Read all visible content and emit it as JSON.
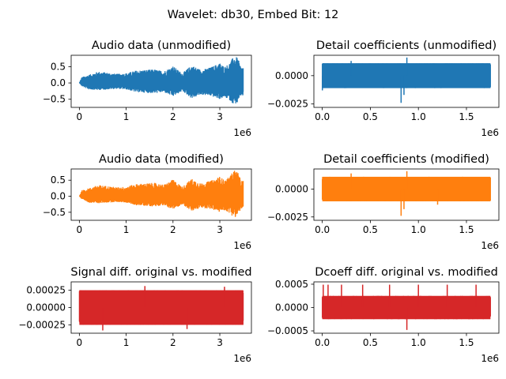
{
  "figure": {
    "suptitle": "Wavelet: db30, Embed Bit: 12",
    "background": "#ffffff"
  },
  "chart_data": [
    {
      "type": "line",
      "title": "Audio data (unmodified)",
      "color": "#1f77b4",
      "xlim": [
        -175000,
        3675000
      ],
      "ylim": [
        -0.75,
        0.85
      ],
      "xticks": [
        0,
        1000000,
        2000000,
        3000000
      ],
      "xtick_labels": [
        "0",
        "1",
        "2",
        "3"
      ],
      "yticks": [
        -0.5,
        0.0,
        0.5
      ],
      "ytick_labels": [
        "−0.5",
        "0.0",
        "0.5"
      ],
      "x_offset_label": "1e6",
      "x_range": [
        0,
        3500000
      ],
      "envelope": {
        "x": [
          0,
          50000,
          200000,
          400000,
          600000,
          800000,
          1000000,
          1200000,
          1400000,
          1600000,
          1800000,
          2000000,
          2200000,
          2400000,
          2600000,
          2800000,
          3000000,
          3100000,
          3200000,
          3300000,
          3380000,
          3450000
        ],
        "upper": [
          0.0,
          0.18,
          0.25,
          0.35,
          0.32,
          0.28,
          0.3,
          0.38,
          0.4,
          0.42,
          0.36,
          0.52,
          0.3,
          0.55,
          0.4,
          0.48,
          0.62,
          0.5,
          0.6,
          0.82,
          0.78,
          0.5
        ],
        "lower": [
          0.0,
          -0.1,
          -0.2,
          -0.22,
          -0.2,
          -0.18,
          -0.2,
          -0.28,
          -0.3,
          -0.32,
          -0.28,
          -0.42,
          -0.25,
          -0.48,
          -0.36,
          -0.4,
          -0.5,
          -0.44,
          -0.52,
          -0.66,
          -0.62,
          -0.4
        ]
      }
    },
    {
      "type": "line",
      "title": "Detail coefficients (unmodified)",
      "color": "#1f77b4",
      "xlim": [
        -87500,
        1837500
      ],
      "ylim": [
        -0.0028,
        0.0018
      ],
      "xticks": [
        0,
        500000,
        1000000,
        1500000
      ],
      "xtick_labels": [
        "0.0",
        "0.5",
        "1.0",
        "1.5"
      ],
      "yticks": [
        -0.0025,
        0.0
      ],
      "ytick_labels": [
        "−0.0025",
        "0.0000"
      ],
      "x_offset_label": "1e6",
      "x_range": [
        0,
        1750000
      ],
      "band": [
        -0.0011,
        0.0011
      ],
      "spikes": [
        {
          "x": 1000,
          "y": -0.0013
        },
        {
          "x": 820000,
          "y": -0.0024
        },
        {
          "x": 880000,
          "y": 0.0016
        },
        {
          "x": 850000,
          "y": -0.0017
        },
        {
          "x": 300000,
          "y": 0.0013
        }
      ]
    },
    {
      "type": "line",
      "title": "Audio data (modified)",
      "color": "#ff7f0e",
      "xlim": [
        -175000,
        3675000
      ],
      "ylim": [
        -0.75,
        0.85
      ],
      "xticks": [
        0,
        1000000,
        2000000,
        3000000
      ],
      "xtick_labels": [
        "0",
        "1",
        "2",
        "3"
      ],
      "yticks": [
        -0.5,
        0.0,
        0.5
      ],
      "ytick_labels": [
        "−0.5",
        "0.0",
        "0.5"
      ],
      "x_offset_label": "1e6",
      "x_range": [
        0,
        3500000
      ],
      "envelope": {
        "x": [
          0,
          50000,
          200000,
          400000,
          600000,
          800000,
          1000000,
          1200000,
          1400000,
          1600000,
          1800000,
          2000000,
          2200000,
          2400000,
          2600000,
          2800000,
          3000000,
          3100000,
          3200000,
          3300000,
          3380000,
          3450000
        ],
        "upper": [
          0.0,
          0.18,
          0.25,
          0.35,
          0.32,
          0.28,
          0.3,
          0.38,
          0.4,
          0.42,
          0.36,
          0.52,
          0.3,
          0.55,
          0.4,
          0.48,
          0.62,
          0.5,
          0.6,
          0.82,
          0.78,
          0.5
        ],
        "lower": [
          0.0,
          -0.1,
          -0.2,
          -0.22,
          -0.2,
          -0.18,
          -0.2,
          -0.28,
          -0.3,
          -0.32,
          -0.28,
          -0.42,
          -0.25,
          -0.48,
          -0.36,
          -0.4,
          -0.5,
          -0.44,
          -0.52,
          -0.66,
          -0.62,
          -0.4
        ]
      }
    },
    {
      "type": "line",
      "title": "Detail coefficients (modified)",
      "color": "#ff7f0e",
      "xlim": [
        -87500,
        1837500
      ],
      "ylim": [
        -0.0028,
        0.0018
      ],
      "xticks": [
        0,
        500000,
        1000000,
        1500000
      ],
      "xtick_labels": [
        "0.0",
        "0.5",
        "1.0",
        "1.5"
      ],
      "yticks": [
        -0.0025,
        0.0
      ],
      "ytick_labels": [
        "−0.0025",
        "0.0000"
      ],
      "x_offset_label": "1e6",
      "x_range": [
        0,
        1750000
      ],
      "band": [
        -0.0011,
        0.0011
      ],
      "spikes": [
        {
          "x": 820000,
          "y": -0.0024
        },
        {
          "x": 880000,
          "y": 0.0016
        },
        {
          "x": 850000,
          "y": -0.0018
        },
        {
          "x": 300000,
          "y": 0.0014
        },
        {
          "x": 1200000,
          "y": -0.0014
        }
      ]
    },
    {
      "type": "line",
      "title": "Signal diff. original vs. modified",
      "color": "#d62728",
      "xlim": [
        -175000,
        3675000
      ],
      "ylim": [
        -0.00037,
        0.00037
      ],
      "xticks": [
        0,
        1000000,
        2000000,
        3000000
      ],
      "xtick_labels": [
        "0",
        "1",
        "2",
        "3"
      ],
      "yticks": [
        -0.00025,
        0.0,
        0.00025
      ],
      "ytick_labels": [
        "−0.00025",
        "0.00000",
        "0.00025"
      ],
      "x_offset_label": "1e6",
      "x_range": [
        0,
        3500000
      ],
      "band": [
        -0.00025,
        0.00025
      ],
      "spikes": [
        {
          "x": 500000,
          "y": -0.00033
        },
        {
          "x": 1400000,
          "y": 0.00031
        },
        {
          "x": 2300000,
          "y": -0.00031
        },
        {
          "x": 3100000,
          "y": 0.0003
        }
      ]
    },
    {
      "type": "line",
      "title": "Dcoeff diff. original vs. modified",
      "color": "#d62728",
      "xlim": [
        -87500,
        1837500
      ],
      "ylim": [
        -0.00055,
        0.00055
      ],
      "xticks": [
        0,
        500000,
        1000000,
        1500000
      ],
      "xtick_labels": [
        "0.0",
        "0.5",
        "1.0",
        "1.5"
      ],
      "yticks": [
        -0.0005,
        0.0,
        0.0005
      ],
      "ytick_labels": [
        "−0.0005",
        "0.0000",
        "0.0005"
      ],
      "x_offset_label": "1e6",
      "x_range": [
        0,
        1750000
      ],
      "band": [
        -0.00025,
        0.00025
      ],
      "spikes": [
        {
          "x": 880000,
          "y": -0.00048
        },
        {
          "x": 10000,
          "y": 0.00049
        },
        {
          "x": 60000,
          "y": 0.00049
        },
        {
          "x": 200000,
          "y": 0.00049
        },
        {
          "x": 420000,
          "y": 0.00049
        },
        {
          "x": 700000,
          "y": 0.00049
        },
        {
          "x": 1000000,
          "y": 0.00049
        },
        {
          "x": 1300000,
          "y": 0.00049
        },
        {
          "x": 1600000,
          "y": 0.00049
        }
      ]
    }
  ]
}
